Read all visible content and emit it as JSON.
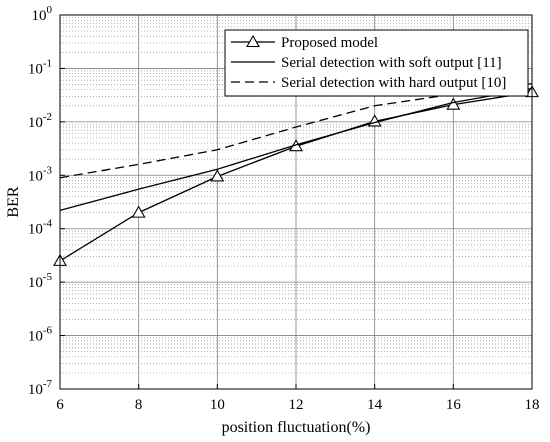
{
  "chart_data": {
    "type": "line",
    "xlabel": "position fluctuation(%)",
    "ylabel": "BER",
    "xlim": [
      6,
      18
    ],
    "ylim": [
      1e-07,
      1
    ],
    "yscale": "log",
    "x_ticks": [
      "6",
      "8",
      "10",
      "12",
      "14",
      "16",
      "18"
    ],
    "y_ticks": [
      {
        "base": "10",
        "exp": "-7"
      },
      {
        "base": "10",
        "exp": "-6"
      },
      {
        "base": "10",
        "exp": "-5"
      },
      {
        "base": "10",
        "exp": "-4"
      },
      {
        "base": "10",
        "exp": "-3"
      },
      {
        "base": "10",
        "exp": "-2"
      },
      {
        "base": "10",
        "exp": "-1"
      },
      {
        "base": "10",
        "exp": "0"
      }
    ],
    "grid": "major and minor (dotted)",
    "legend_position": "top-right",
    "series": [
      {
        "name": "Proposed model",
        "style": "solid",
        "marker": "triangle",
        "x": [
          6,
          8,
          10,
          12,
          14,
          16,
          18
        ],
        "y": [
          2.5e-05,
          0.0002,
          0.00095,
          0.0035,
          0.0102,
          0.021,
          0.036
        ]
      },
      {
        "name": "Serial detection with soft output [11]",
        "style": "solid",
        "marker": "none",
        "x": [
          6,
          8,
          10,
          12,
          14,
          16,
          18
        ],
        "y": [
          0.00022,
          0.00055,
          0.0013,
          0.0037,
          0.0097,
          0.023,
          0.042
        ]
      },
      {
        "name": "Serial detection with hard output [10]",
        "style": "dashed",
        "marker": "none",
        "x": [
          6,
          8,
          10,
          12,
          14,
          16,
          18
        ],
        "y": [
          0.0009,
          0.0016,
          0.003,
          0.008,
          0.02,
          0.033,
          0.052
        ]
      }
    ],
    "colors": {
      "lines": "#000000",
      "grid": "#808080",
      "background": "#ffffff"
    }
  }
}
